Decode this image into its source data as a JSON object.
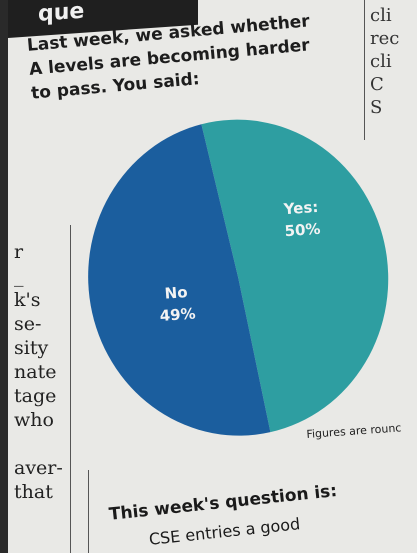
{
  "header_fragment": "que",
  "headline": {
    "line1": "Last week, we asked whether",
    "line2": "A levels are becoming harder",
    "line3": "to pass. You said:"
  },
  "left_column_fragments": [
    "r",
    "_",
    "k's",
    "se-",
    "sity",
    "nate",
    "tage",
    "who",
    "",
    "aver-",
    "that"
  ],
  "right_column_fragments": [
    "cli",
    "rec",
    "cli",
    "C",
    "S"
  ],
  "footnote": "Figures are rounc",
  "next_question": {
    "title": "This week's question is:",
    "partial": "CSE entries a good"
  },
  "colors": {
    "no": "#1b5e9e",
    "yes": "#2e9ea1",
    "paper": "#e9e9e6"
  },
  "chart_data": {
    "type": "pie",
    "title": "",
    "slices": [
      {
        "label": "Yes:",
        "value": 50,
        "display": "50%",
        "color": "#2e9ea1"
      },
      {
        "label": "No",
        "value": 49,
        "display": "49%",
        "color": "#1b5e9e"
      }
    ],
    "legend": "none"
  }
}
